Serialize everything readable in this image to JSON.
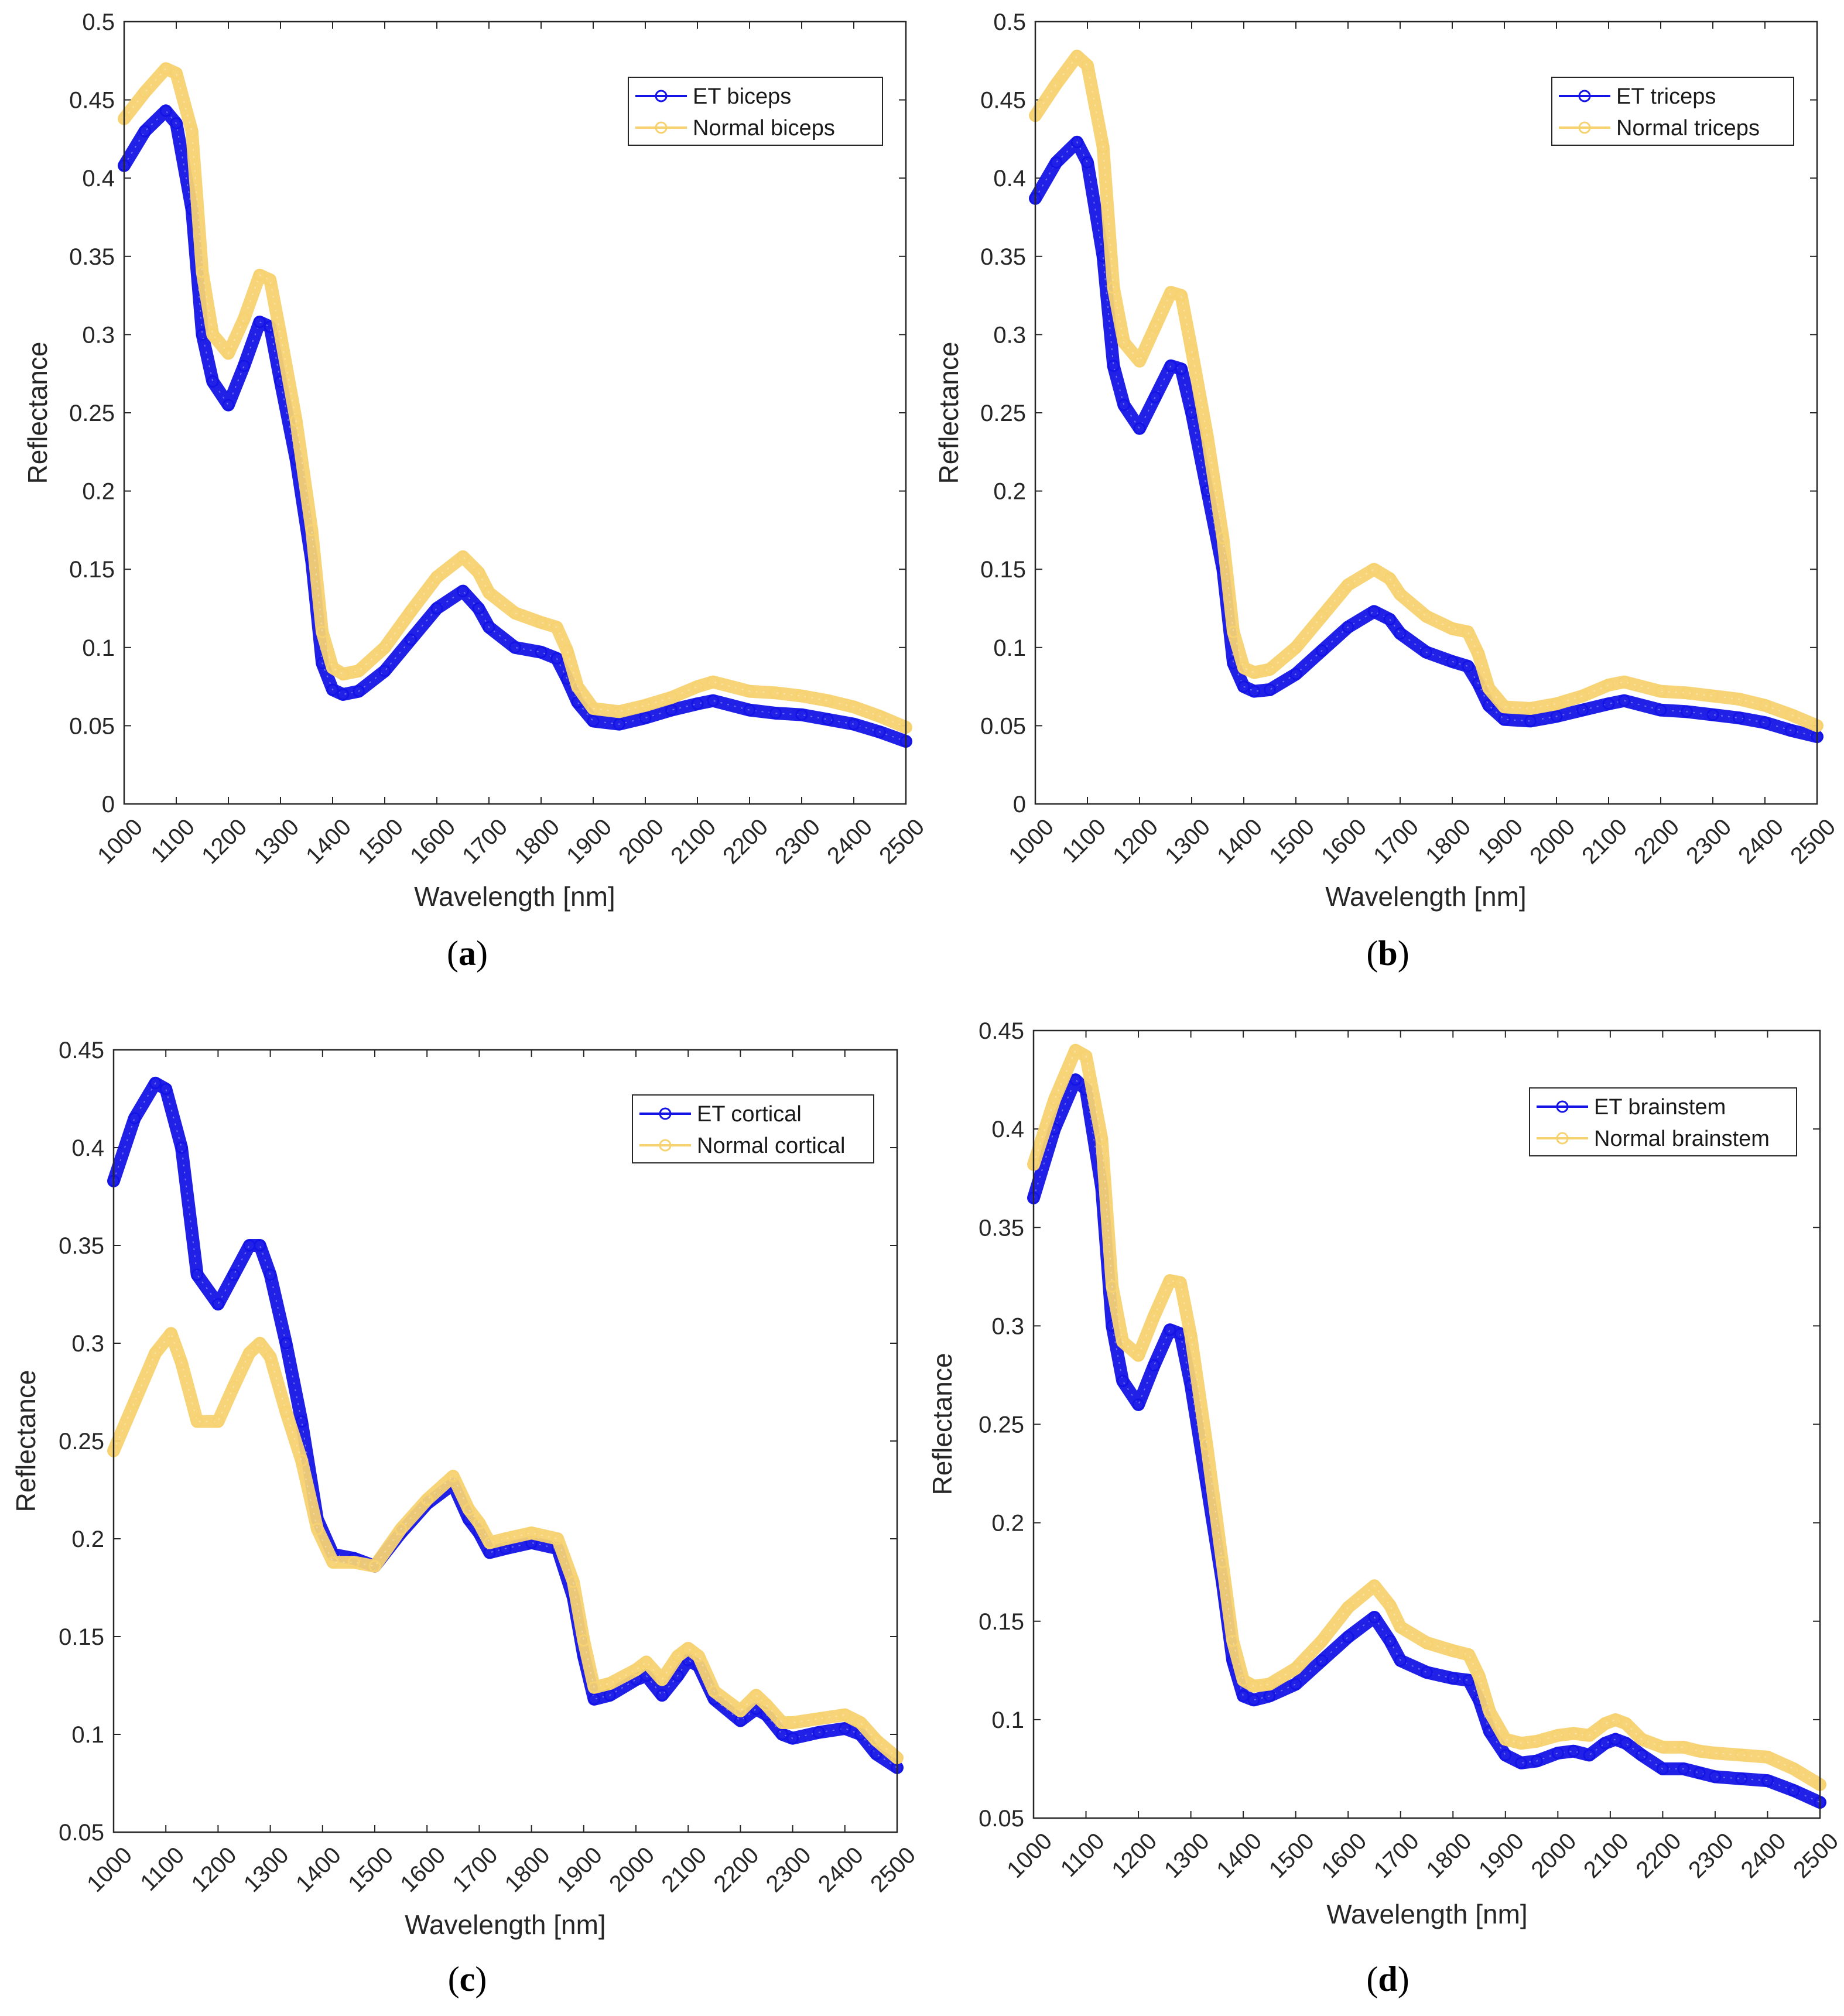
{
  "chart_data": [
    {
      "type": "line",
      "panel_label": "(a)",
      "panel_letter": "a",
      "xlabel": "Wavelength [nm]",
      "ylabel": "Reflectance",
      "xlim": [
        1000,
        2500
      ],
      "ylim": [
        0,
        0.5
      ],
      "xticks": [
        1000,
        1100,
        1200,
        1300,
        1400,
        1500,
        1600,
        1700,
        1800,
        1900,
        2000,
        2100,
        2200,
        2300,
        2400,
        2500
      ],
      "yticks": [
        0,
        0.05,
        0.1,
        0.15,
        0.2,
        0.25,
        0.3,
        0.35,
        0.4,
        0.45,
        0.5
      ],
      "ytick_labels": [
        "0",
        "0.05",
        "0.1",
        "0.15",
        "0.2",
        "0.25",
        "0.3",
        "0.35",
        "0.4",
        "0.45",
        "0.5"
      ],
      "legend_position": "top-right",
      "series": [
        {
          "name": "ET biceps",
          "color": "#1414e6",
          "x": [
            1000,
            1040,
            1080,
            1100,
            1130,
            1150,
            1170,
            1200,
            1230,
            1260,
            1280,
            1300,
            1330,
            1360,
            1380,
            1400,
            1420,
            1450,
            1500,
            1550,
            1600,
            1650,
            1680,
            1700,
            1750,
            1800,
            1830,
            1850,
            1870,
            1900,
            1950,
            2000,
            2050,
            2100,
            2130,
            2200,
            2250,
            2300,
            2350,
            2400,
            2450,
            2500
          ],
          "y": [
            0.408,
            0.43,
            0.443,
            0.435,
            0.38,
            0.3,
            0.27,
            0.255,
            0.28,
            0.308,
            0.305,
            0.27,
            0.22,
            0.155,
            0.09,
            0.073,
            0.07,
            0.072,
            0.085,
            0.105,
            0.125,
            0.136,
            0.125,
            0.113,
            0.1,
            0.097,
            0.093,
            0.08,
            0.065,
            0.053,
            0.051,
            0.055,
            0.06,
            0.064,
            0.066,
            0.06,
            0.058,
            0.057,
            0.054,
            0.051,
            0.046,
            0.04
          ]
        },
        {
          "name": "Normal biceps",
          "color": "#f7d271",
          "x": [
            1000,
            1040,
            1080,
            1100,
            1130,
            1150,
            1170,
            1200,
            1230,
            1260,
            1280,
            1300,
            1330,
            1360,
            1380,
            1400,
            1420,
            1450,
            1500,
            1550,
            1600,
            1650,
            1680,
            1700,
            1750,
            1800,
            1830,
            1850,
            1870,
            1900,
            1950,
            2000,
            2050,
            2100,
            2130,
            2200,
            2250,
            2300,
            2350,
            2400,
            2450,
            2500
          ],
          "y": [
            0.438,
            0.455,
            0.47,
            0.467,
            0.43,
            0.34,
            0.3,
            0.288,
            0.31,
            0.338,
            0.335,
            0.3,
            0.245,
            0.175,
            0.11,
            0.087,
            0.083,
            0.085,
            0.1,
            0.123,
            0.145,
            0.158,
            0.148,
            0.135,
            0.122,
            0.116,
            0.113,
            0.098,
            0.075,
            0.061,
            0.059,
            0.063,
            0.068,
            0.075,
            0.078,
            0.072,
            0.071,
            0.069,
            0.066,
            0.062,
            0.056,
            0.049
          ]
        }
      ]
    },
    {
      "type": "line",
      "panel_label": "(b)",
      "panel_letter": "b",
      "xlabel": "Wavelength [nm]",
      "ylabel": "Reflectance",
      "xlim": [
        1000,
        2500
      ],
      "ylim": [
        0,
        0.5
      ],
      "xticks": [
        1000,
        1100,
        1200,
        1300,
        1400,
        1500,
        1600,
        1700,
        1800,
        1900,
        2000,
        2100,
        2200,
        2300,
        2400,
        2500
      ],
      "yticks": [
        0,
        0.05,
        0.1,
        0.15,
        0.2,
        0.25,
        0.3,
        0.35,
        0.4,
        0.45,
        0.5
      ],
      "ytick_labels": [
        "0",
        "0.05",
        "0.1",
        "0.15",
        "0.2",
        "0.25",
        "0.3",
        "0.35",
        "0.4",
        "0.45",
        "0.5"
      ],
      "legend_position": "top-right",
      "series": [
        {
          "name": "ET triceps",
          "color": "#1414e6",
          "x": [
            1000,
            1040,
            1080,
            1100,
            1130,
            1150,
            1170,
            1200,
            1230,
            1260,
            1280,
            1300,
            1330,
            1360,
            1380,
            1400,
            1420,
            1450,
            1500,
            1550,
            1600,
            1650,
            1680,
            1700,
            1750,
            1800,
            1830,
            1850,
            1870,
            1900,
            1950,
            2000,
            2050,
            2100,
            2130,
            2200,
            2250,
            2300,
            2350,
            2400,
            2450,
            2500
          ],
          "y": [
            0.387,
            0.41,
            0.423,
            0.41,
            0.35,
            0.28,
            0.255,
            0.24,
            0.26,
            0.28,
            0.278,
            0.25,
            0.2,
            0.15,
            0.09,
            0.075,
            0.072,
            0.073,
            0.083,
            0.098,
            0.113,
            0.123,
            0.118,
            0.109,
            0.097,
            0.091,
            0.088,
            0.077,
            0.063,
            0.054,
            0.053,
            0.056,
            0.06,
            0.064,
            0.066,
            0.06,
            0.059,
            0.057,
            0.055,
            0.052,
            0.047,
            0.043
          ]
        },
        {
          "name": "Normal triceps",
          "color": "#f7d271",
          "x": [
            1000,
            1040,
            1080,
            1100,
            1130,
            1150,
            1170,
            1200,
            1230,
            1260,
            1280,
            1300,
            1330,
            1360,
            1380,
            1400,
            1420,
            1450,
            1500,
            1550,
            1600,
            1650,
            1680,
            1700,
            1750,
            1800,
            1830,
            1850,
            1870,
            1900,
            1950,
            2000,
            2050,
            2100,
            2130,
            2200,
            2250,
            2300,
            2350,
            2400,
            2450,
            2500
          ],
          "y": [
            0.44,
            0.46,
            0.478,
            0.472,
            0.42,
            0.33,
            0.295,
            0.283,
            0.305,
            0.327,
            0.325,
            0.29,
            0.235,
            0.17,
            0.11,
            0.087,
            0.084,
            0.086,
            0.1,
            0.12,
            0.14,
            0.15,
            0.144,
            0.134,
            0.12,
            0.112,
            0.11,
            0.096,
            0.074,
            0.062,
            0.061,
            0.064,
            0.069,
            0.076,
            0.078,
            0.072,
            0.071,
            0.069,
            0.067,
            0.063,
            0.057,
            0.05
          ]
        }
      ]
    },
    {
      "type": "line",
      "panel_label": "(c)",
      "panel_letter": "c",
      "xlabel": "Wavelength [nm]",
      "ylabel": "Reflectance",
      "xlim": [
        1000,
        2500
      ],
      "ylim": [
        0.05,
        0.45
      ],
      "xticks": [
        1000,
        1100,
        1200,
        1300,
        1400,
        1500,
        1600,
        1700,
        1800,
        1900,
        2000,
        2100,
        2200,
        2300,
        2400,
        2500
      ],
      "yticks": [
        0.05,
        0.1,
        0.15,
        0.2,
        0.25,
        0.3,
        0.35,
        0.4,
        0.45
      ],
      "ytick_labels": [
        "0.05",
        "0.1",
        "0.15",
        "0.2",
        "0.25",
        "0.3",
        "0.35",
        "0.4",
        "0.45"
      ],
      "legend_position": "top-right",
      "series": [
        {
          "name": "ET cortical",
          "color": "#1414e6",
          "x": [
            1000,
            1040,
            1080,
            1100,
            1130,
            1160,
            1200,
            1230,
            1260,
            1280,
            1300,
            1330,
            1360,
            1390,
            1420,
            1460,
            1500,
            1550,
            1600,
            1650,
            1680,
            1700,
            1720,
            1750,
            1800,
            1850,
            1880,
            1900,
            1920,
            1950,
            2000,
            2020,
            2050,
            2080,
            2100,
            2120,
            2150,
            2200,
            2230,
            2250,
            2280,
            2300,
            2350,
            2400,
            2430,
            2460,
            2500
          ],
          "y": [
            0.383,
            0.415,
            0.433,
            0.43,
            0.4,
            0.335,
            0.32,
            0.335,
            0.35,
            0.35,
            0.335,
            0.3,
            0.26,
            0.21,
            0.192,
            0.19,
            0.186,
            0.203,
            0.218,
            0.228,
            0.21,
            0.203,
            0.193,
            0.195,
            0.198,
            0.195,
            0.17,
            0.14,
            0.118,
            0.12,
            0.128,
            0.13,
            0.12,
            0.13,
            0.138,
            0.135,
            0.118,
            0.107,
            0.113,
            0.11,
            0.1,
            0.098,
            0.101,
            0.103,
            0.1,
            0.09,
            0.083
          ]
        },
        {
          "name": "Normal cortical",
          "color": "#f7d271",
          "x": [
            1000,
            1040,
            1080,
            1110,
            1130,
            1160,
            1200,
            1230,
            1260,
            1280,
            1300,
            1330,
            1360,
            1390,
            1420,
            1460,
            1500,
            1550,
            1600,
            1650,
            1680,
            1700,
            1720,
            1750,
            1800,
            1850,
            1880,
            1900,
            1920,
            1950,
            2000,
            2020,
            2050,
            2080,
            2100,
            2120,
            2150,
            2200,
            2230,
            2250,
            2280,
            2300,
            2350,
            2400,
            2430,
            2460,
            2500
          ],
          "y": [
            0.245,
            0.27,
            0.295,
            0.305,
            0.29,
            0.26,
            0.26,
            0.278,
            0.295,
            0.3,
            0.293,
            0.265,
            0.24,
            0.205,
            0.188,
            0.188,
            0.186,
            0.205,
            0.22,
            0.232,
            0.215,
            0.208,
            0.198,
            0.2,
            0.203,
            0.2,
            0.178,
            0.148,
            0.124,
            0.126,
            0.133,
            0.137,
            0.128,
            0.14,
            0.144,
            0.14,
            0.122,
            0.112,
            0.12,
            0.115,
            0.106,
            0.106,
            0.108,
            0.11,
            0.106,
            0.097,
            0.088
          ]
        }
      ]
    },
    {
      "type": "line",
      "panel_label": "(d)",
      "panel_letter": "d",
      "xlabel": "Wavelength [nm]",
      "ylabel": "Reflectance",
      "xlim": [
        1000,
        2500
      ],
      "ylim": [
        0.05,
        0.45
      ],
      "xticks": [
        1000,
        1100,
        1200,
        1300,
        1400,
        1500,
        1600,
        1700,
        1800,
        1900,
        2000,
        2100,
        2200,
        2300,
        2400,
        2500
      ],
      "yticks": [
        0.05,
        0.1,
        0.15,
        0.2,
        0.25,
        0.3,
        0.35,
        0.4,
        0.45
      ],
      "ytick_labels": [
        "0.05",
        "0.1",
        "0.15",
        "0.2",
        "0.25",
        "0.3",
        "0.35",
        "0.4",
        "0.45"
      ],
      "legend_position": "top-right",
      "series": [
        {
          "name": "ET brainstem",
          "color": "#1414e6",
          "x": [
            1000,
            1040,
            1080,
            1100,
            1130,
            1150,
            1170,
            1200,
            1230,
            1260,
            1280,
            1300,
            1330,
            1360,
            1380,
            1400,
            1420,
            1450,
            1500,
            1550,
            1600,
            1650,
            1680,
            1700,
            1750,
            1800,
            1830,
            1850,
            1870,
            1900,
            1930,
            1960,
            2000,
            2030,
            2060,
            2090,
            2110,
            2130,
            2160,
            2200,
            2240,
            2270,
            2300,
            2350,
            2400,
            2450,
            2500
          ],
          "y": [
            0.365,
            0.4,
            0.425,
            0.42,
            0.37,
            0.3,
            0.272,
            0.26,
            0.28,
            0.298,
            0.296,
            0.27,
            0.22,
            0.17,
            0.13,
            0.112,
            0.11,
            0.112,
            0.118,
            0.13,
            0.142,
            0.152,
            0.14,
            0.13,
            0.124,
            0.121,
            0.12,
            0.11,
            0.094,
            0.082,
            0.078,
            0.079,
            0.083,
            0.084,
            0.082,
            0.088,
            0.09,
            0.088,
            0.082,
            0.075,
            0.075,
            0.073,
            0.071,
            0.07,
            0.069,
            0.064,
            0.058
          ]
        },
        {
          "name": "Normal brainstem",
          "color": "#f7d271",
          "x": [
            1000,
            1040,
            1080,
            1100,
            1130,
            1150,
            1170,
            1200,
            1230,
            1260,
            1280,
            1300,
            1330,
            1360,
            1380,
            1400,
            1420,
            1450,
            1500,
            1550,
            1600,
            1650,
            1680,
            1700,
            1750,
            1800,
            1830,
            1850,
            1870,
            1900,
            1930,
            1960,
            2000,
            2030,
            2060,
            2090,
            2110,
            2130,
            2160,
            2200,
            2240,
            2270,
            2300,
            2350,
            2400,
            2450,
            2500
          ],
          "y": [
            0.382,
            0.415,
            0.44,
            0.437,
            0.395,
            0.32,
            0.292,
            0.285,
            0.305,
            0.323,
            0.322,
            0.295,
            0.24,
            0.18,
            0.14,
            0.12,
            0.117,
            0.118,
            0.126,
            0.14,
            0.157,
            0.168,
            0.158,
            0.147,
            0.139,
            0.135,
            0.133,
            0.122,
            0.104,
            0.09,
            0.088,
            0.089,
            0.092,
            0.093,
            0.092,
            0.098,
            0.1,
            0.098,
            0.09,
            0.086,
            0.086,
            0.084,
            0.083,
            0.082,
            0.081,
            0.075,
            0.067
          ]
        }
      ]
    }
  ]
}
